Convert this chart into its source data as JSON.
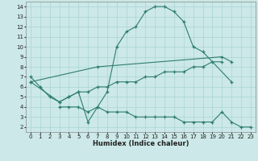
{
  "xlabel": "Humidex (Indice chaleur)",
  "bg_color": "#cce8e8",
  "grid_color": "#aad4d4",
  "line_color": "#2e7d6e",
  "xlim": [
    -0.5,
    23.5
  ],
  "ylim": [
    1.5,
    14.5
  ],
  "yticks": [
    2,
    3,
    4,
    5,
    6,
    7,
    8,
    9,
    10,
    11,
    12,
    13,
    14
  ],
  "xticks": [
    0,
    1,
    2,
    3,
    4,
    5,
    6,
    7,
    8,
    9,
    10,
    11,
    12,
    13,
    14,
    15,
    16,
    17,
    18,
    19,
    20,
    21,
    22,
    23
  ],
  "line1": [
    [
      0,
      7
    ],
    [
      1,
      6
    ],
    [
      2,
      5
    ],
    [
      3,
      4.5
    ],
    [
      4,
      5
    ],
    [
      5,
      5.5
    ],
    [
      6,
      2.5
    ],
    [
      7,
      4
    ],
    [
      8,
      5.5
    ],
    [
      9,
      10
    ],
    [
      10,
      11.5
    ],
    [
      11,
      12
    ],
    [
      12,
      13.5
    ],
    [
      13,
      14
    ],
    [
      14,
      14
    ],
    [
      15,
      13.5
    ],
    [
      16,
      12.5
    ],
    [
      17,
      10
    ],
    [
      18,
      9.5
    ],
    [
      21,
      6.5
    ]
  ],
  "line2": [
    [
      0,
      6.5
    ],
    [
      7,
      8
    ],
    [
      20,
      9
    ],
    [
      21,
      8.5
    ]
  ],
  "line3": [
    [
      0,
      6.5
    ],
    [
      3,
      4.5
    ],
    [
      4,
      5
    ],
    [
      5,
      5.5
    ],
    [
      6,
      5.5
    ],
    [
      7,
      6
    ],
    [
      8,
      6
    ],
    [
      9,
      6.5
    ],
    [
      10,
      6.5
    ],
    [
      11,
      6.5
    ],
    [
      12,
      7
    ],
    [
      13,
      7
    ],
    [
      14,
      7.5
    ],
    [
      15,
      7.5
    ],
    [
      16,
      7.5
    ],
    [
      17,
      8
    ],
    [
      18,
      8
    ],
    [
      19,
      8.5
    ],
    [
      20,
      8.5
    ]
  ],
  "line4": [
    [
      3,
      4
    ],
    [
      4,
      4
    ],
    [
      5,
      4
    ],
    [
      6,
      3.5
    ],
    [
      7,
      4
    ],
    [
      8,
      3.5
    ],
    [
      9,
      3.5
    ],
    [
      10,
      3.5
    ],
    [
      11,
      3
    ],
    [
      12,
      3
    ],
    [
      13,
      3
    ],
    [
      14,
      3
    ],
    [
      15,
      3
    ],
    [
      16,
      2.5
    ],
    [
      17,
      2.5
    ],
    [
      18,
      2.5
    ],
    [
      19,
      2.5
    ],
    [
      20,
      3.5
    ],
    [
      21,
      2.5
    ],
    [
      22,
      2
    ],
    [
      23,
      2
    ]
  ]
}
